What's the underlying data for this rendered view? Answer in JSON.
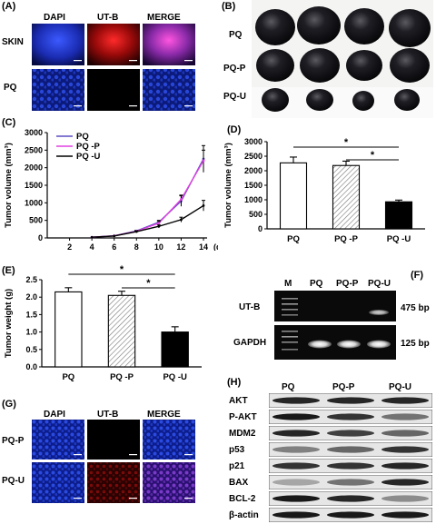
{
  "panelA": {
    "letter": "(A)",
    "col_headers": [
      "DAPI",
      "UT-B",
      "MERGE"
    ],
    "row_labels": [
      "SKIN",
      "PQ"
    ]
  },
  "panelB": {
    "letter": "(B)",
    "row_labels": [
      "PQ",
      "PQ-P",
      "PQ-U"
    ]
  },
  "panelC": {
    "letter": "(C)",
    "chart_data": {
      "type": "line",
      "ylabel": "Tumor volume (mm³)",
      "xlabel": "(d)",
      "ylim": [
        0,
        3000
      ],
      "yticks": [
        0,
        500,
        1000,
        1500,
        2000,
        2500,
        3000
      ],
      "x": [
        2,
        4,
        6,
        8,
        10,
        12,
        14
      ],
      "series": [
        {
          "name": "PQ",
          "color": "#5b4fc4",
          "points": [
            [
              4,
              20
            ],
            [
              6,
              60
            ],
            [
              8,
              200
            ],
            [
              10,
              450
            ],
            [
              12,
              1050
            ],
            [
              14,
              2250
            ]
          ],
          "errors": [
            0,
            0,
            20,
            50,
            150,
            380
          ]
        },
        {
          "name": "PQ -P",
          "color": "#e040e0",
          "points": [
            [
              4,
              20
            ],
            [
              6,
              60
            ],
            [
              8,
              190
            ],
            [
              10,
              420
            ],
            [
              12,
              1100
            ],
            [
              14,
              2200
            ]
          ],
          "errors": [
            0,
            0,
            20,
            50,
            120,
            300
          ]
        },
        {
          "name": "PQ -U",
          "color": "#000000",
          "points": [
            [
              4,
              20
            ],
            [
              6,
              55
            ],
            [
              8,
              180
            ],
            [
              10,
              330
            ],
            [
              12,
              520
            ],
            [
              14,
              920
            ]
          ],
          "errors": [
            0,
            0,
            15,
            40,
            70,
            150
          ]
        }
      ]
    }
  },
  "panelD": {
    "letter": "(D)",
    "chart_data": {
      "type": "bar",
      "ylabel": "Tumor volume (mm³)",
      "ylim": [
        0,
        3000
      ],
      "yticks": [
        0,
        500,
        1000,
        1500,
        2000,
        2500,
        3000
      ],
      "categories": [
        "PQ",
        "PQ -P",
        "PQ -U"
      ],
      "values": [
        2270,
        2180,
        930
      ],
      "errors": [
        200,
        150,
        60
      ],
      "fills": [
        "white",
        "hatch",
        "black"
      ],
      "significance": [
        "*",
        "*"
      ]
    }
  },
  "panelE": {
    "letter": "(E)",
    "chart_data": {
      "type": "bar",
      "ylabel": "Tumor weight (g)",
      "ylim": [
        0,
        2.5
      ],
      "yticks": [
        "0.0",
        "0.5",
        "1.0",
        "1.5",
        "2.0",
        "2.5"
      ],
      "categories": [
        "PQ",
        "PQ -P",
        "PQ -U"
      ],
      "values": [
        2.15,
        2.05,
        1.0
      ],
      "errors": [
        0.12,
        0.12,
        0.15
      ],
      "fills": [
        "white",
        "hatch",
        "black"
      ],
      "significance": [
        "*",
        "*"
      ]
    }
  },
  "panelF": {
    "letter": "(F)",
    "lane_labels": [
      "M",
      "PQ",
      "PQ-P",
      "PQ-U"
    ],
    "row_labels": [
      "UT-B",
      "GAPDH"
    ],
    "sizes": [
      "475 bp",
      "125 bp"
    ]
  },
  "panelG": {
    "letter": "(G)",
    "col_headers": [
      "DAPI",
      "UT-B",
      "MERGE"
    ],
    "row_labels": [
      "PQ-P",
      "PQ-U"
    ]
  },
  "panelH": {
    "letter": "(H)",
    "col_headers": [
      "PQ",
      "PQ-P",
      "PQ-U"
    ],
    "row_labels": [
      "AKT",
      "P-AKT",
      "MDM2",
      "p53",
      "p21",
      "BAX",
      "BCL-2",
      "β-actin"
    ]
  }
}
